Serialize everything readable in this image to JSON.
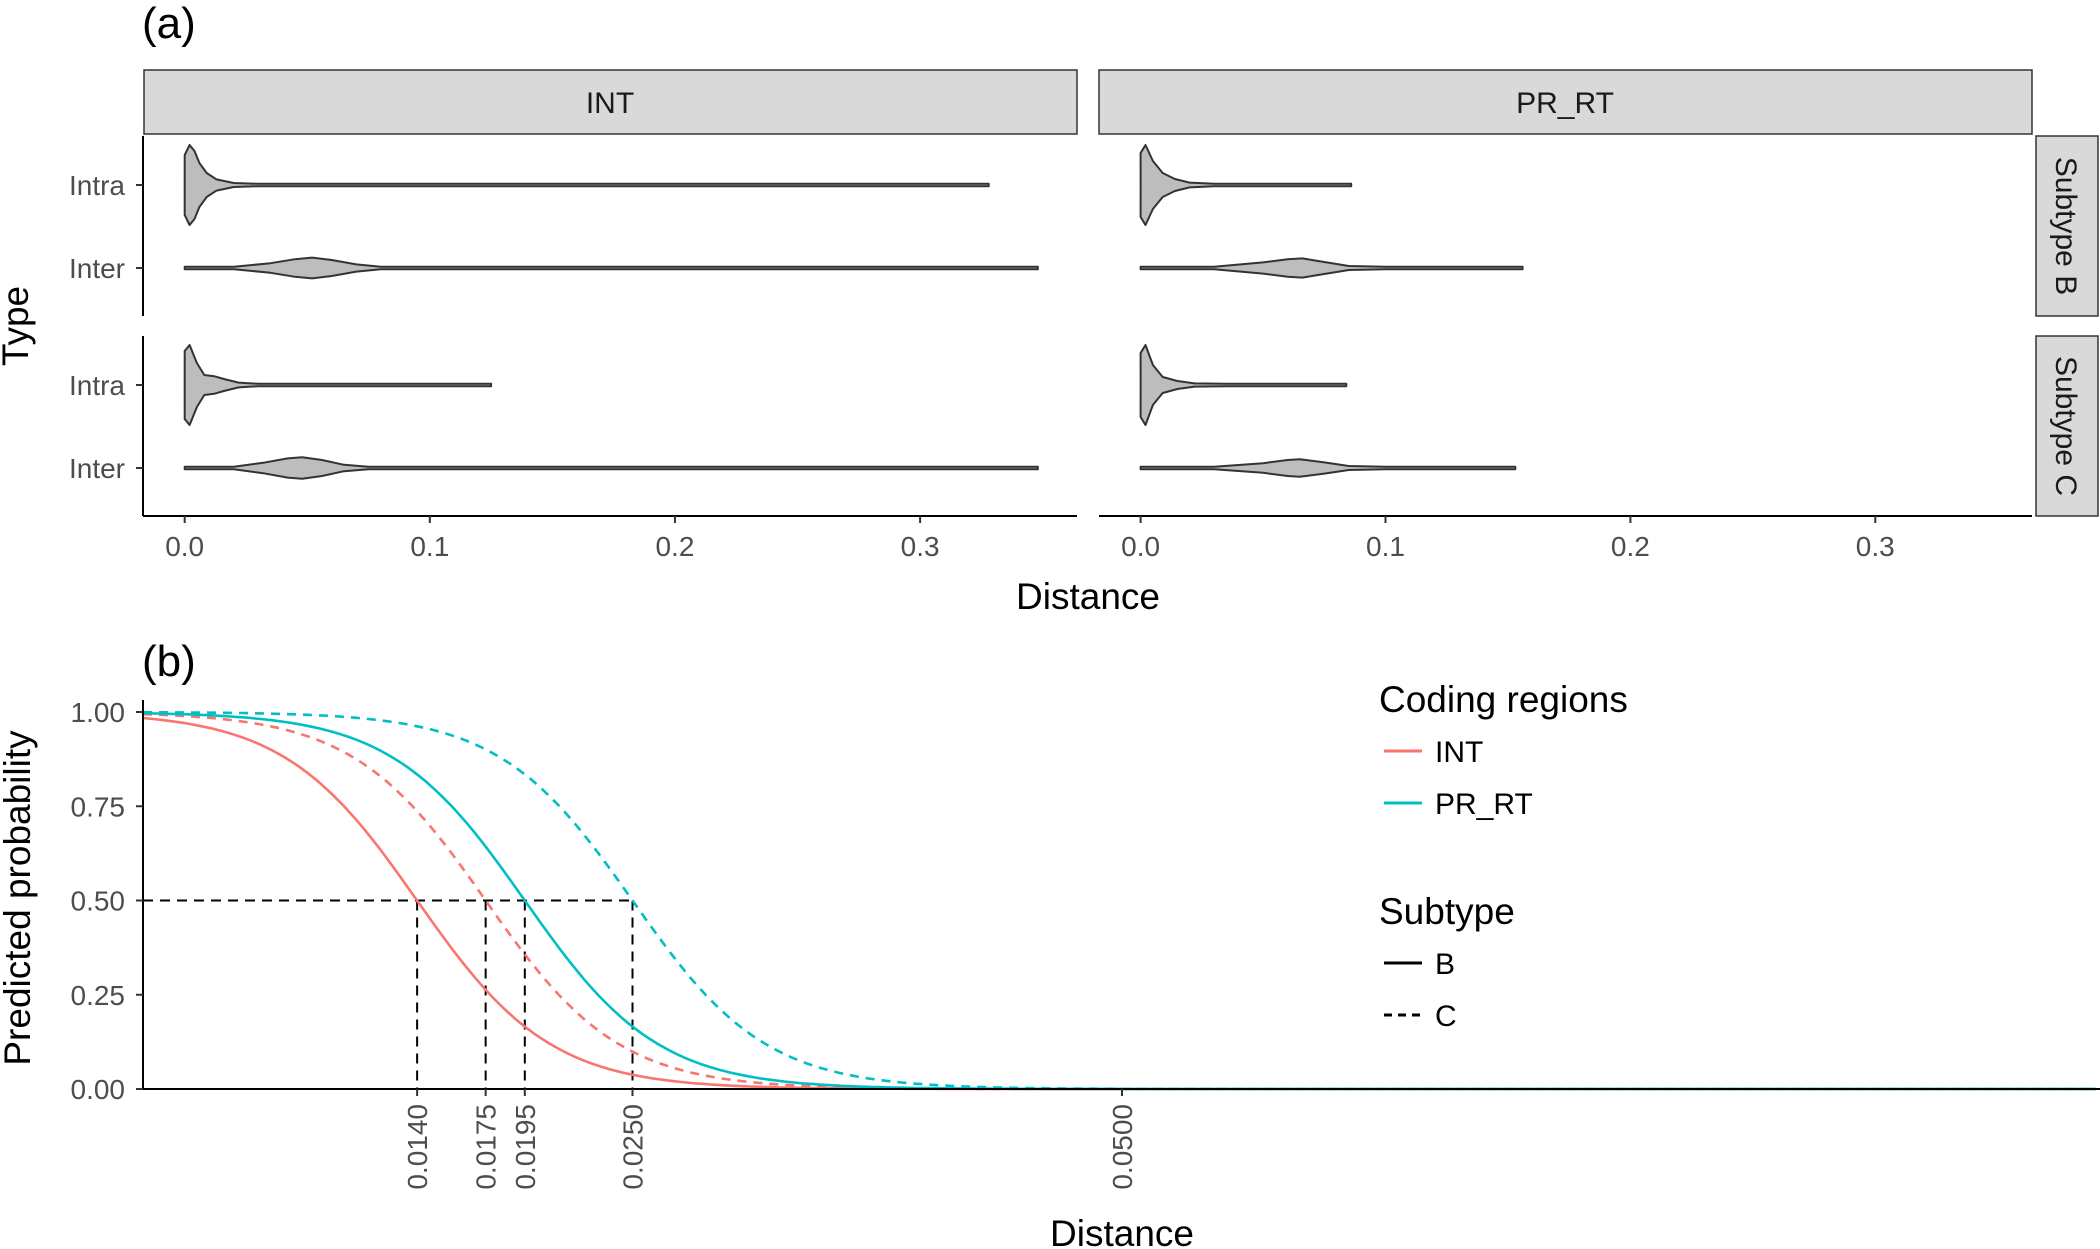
{
  "chart_data": [
    {
      "panel_tag": "(a)",
      "type": "violin",
      "facet_columns": [
        "INT",
        "PR_RT"
      ],
      "facet_rows": [
        "Subtype B",
        "Subtype C"
      ],
      "xlabel": "Distance",
      "ylabel": "Type",
      "x_ticks": [
        "0.0",
        "0.1",
        "0.2",
        "0.3"
      ],
      "x_tick_values": [
        0,
        0.1,
        0.2,
        0.3
      ],
      "y_categories": [
        "Intra",
        "Inter"
      ],
      "xlim": [
        -0.017,
        0.364
      ],
      "fill_color": "#bdbdbd",
      "violins": [
        {
          "column": "INT",
          "row": "Subtype B",
          "type": "Intra",
          "min": 0.0,
          "max": 0.328,
          "profile": [
            [
              0,
              0.75
            ],
            [
              0.002,
              1.0
            ],
            [
              0.004,
              0.85
            ],
            [
              0.006,
              0.55
            ],
            [
              0.009,
              0.3
            ],
            [
              0.013,
              0.14
            ],
            [
              0.02,
              0.05
            ],
            [
              0.03,
              0.015
            ],
            [
              0.05,
              0.004
            ],
            [
              0.328,
              0.004
            ]
          ]
        },
        {
          "column": "INT",
          "row": "Subtype B",
          "type": "Inter",
          "min": 0.0,
          "max": 0.348,
          "profile": [
            [
              0,
              0.01
            ],
            [
              0.02,
              0.03
            ],
            [
              0.035,
              0.12
            ],
            [
              0.045,
              0.22
            ],
            [
              0.052,
              0.26
            ],
            [
              0.06,
              0.2
            ],
            [
              0.07,
              0.09
            ],
            [
              0.08,
              0.03
            ],
            [
              0.1,
              0.01
            ],
            [
              0.348,
              0.005
            ]
          ]
        },
        {
          "column": "INT",
          "row": "Subtype C",
          "type": "Intra",
          "min": 0.0,
          "max": 0.125,
          "profile": [
            [
              0,
              0.85
            ],
            [
              0.002,
              1.0
            ],
            [
              0.005,
              0.55
            ],
            [
              0.008,
              0.25
            ],
            [
              0.012,
              0.22
            ],
            [
              0.016,
              0.15
            ],
            [
              0.022,
              0.06
            ],
            [
              0.03,
              0.02
            ],
            [
              0.05,
              0.006
            ],
            [
              0.125,
              0.004
            ]
          ]
        },
        {
          "column": "INT",
          "row": "Subtype C",
          "type": "Inter",
          "min": 0.0,
          "max": 0.348,
          "profile": [
            [
              0,
              0.01
            ],
            [
              0.02,
              0.03
            ],
            [
              0.032,
              0.13
            ],
            [
              0.042,
              0.24
            ],
            [
              0.048,
              0.27
            ],
            [
              0.056,
              0.2
            ],
            [
              0.065,
              0.08
            ],
            [
              0.075,
              0.03
            ],
            [
              0.1,
              0.01
            ],
            [
              0.348,
              0.005
            ]
          ]
        }
      ]
    },
    {
      "panel_tag": "(b)",
      "type": "line",
      "xlabel": "Distance",
      "ylabel": "Predicted probability",
      "y_ticks": [
        "0.00",
        "0.25",
        "0.50",
        "0.75",
        "1.00"
      ],
      "y_tick_values": [
        0,
        0.25,
        0.5,
        0.75,
        1
      ],
      "x_ticks": [
        "0.0140",
        "0.0175",
        "0.0195",
        "0.0250",
        "0.0500"
      ],
      "x_tick_values": [
        0.014,
        0.0175,
        0.0195,
        0.025,
        0.05
      ],
      "xlim": [
        0.0,
        0.1
      ],
      "ylim": [
        0,
        1
      ],
      "reference_y": 0.5,
      "legend": {
        "color_title": "Coding regions",
        "linetype_title": "Subtype",
        "placement": "top-right"
      },
      "series": [
        {
          "name": "INT",
          "subtype": "B",
          "color": "#f8766d",
          "linetype": "solid",
          "midpoint": 0.014
        },
        {
          "name": "INT",
          "subtype": "C",
          "color": "#f8766d",
          "linetype": "dashed",
          "midpoint": 0.0175
        },
        {
          "name": "PR_RT",
          "subtype": "B",
          "color": "#00bfc4",
          "linetype": "solid",
          "midpoint": 0.0195
        },
        {
          "name": "PR_RT",
          "subtype": "C",
          "color": "#00bfc4",
          "linetype": "dashed",
          "midpoint": 0.025
        }
      ]
    }
  ]
}
